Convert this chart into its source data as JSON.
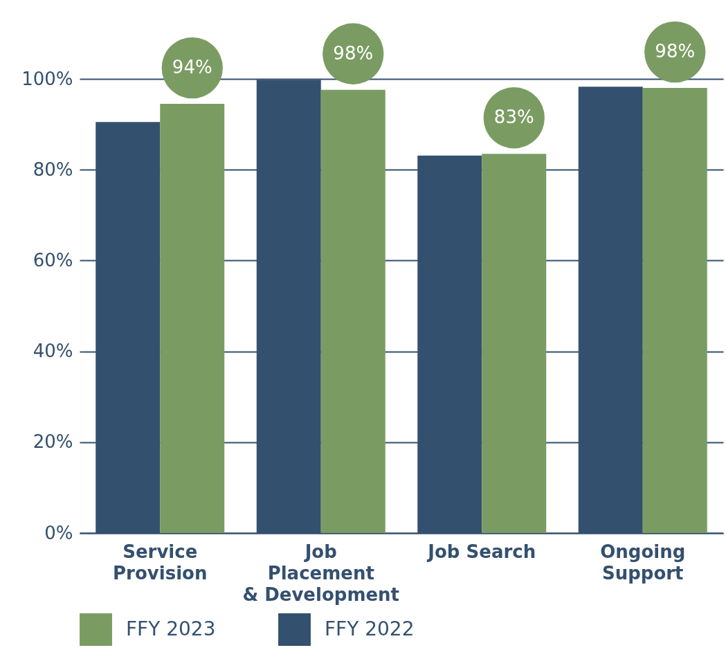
{
  "chart_data": {
    "type": "bar",
    "categories": [
      "Service Provision",
      "Job Placement & Development",
      "Job Search",
      "Ongoing Support"
    ],
    "series": [
      {
        "name": "FFY 2022",
        "color": "#34506f",
        "values": [
          90.5,
          99.8,
          83.1,
          98.3
        ]
      },
      {
        "name": "FFY 2023",
        "color": "#7a9c62",
        "values": [
          94.5,
          97.6,
          83.5,
          98
        ],
        "value_labels": [
          "94%",
          "98%",
          "83%",
          "98%"
        ]
      }
    ],
    "ylim": [
      0,
      100
    ],
    "yticks": [
      {
        "value": 0,
        "label": "0%"
      },
      {
        "value": 20,
        "label": "20%"
      },
      {
        "value": 40,
        "label": "40%"
      },
      {
        "value": 60,
        "label": "60%"
      },
      {
        "value": 80,
        "label": "80%"
      },
      {
        "value": 100,
        "label": "100%"
      }
    ],
    "grid": "y",
    "legend": "bottom"
  }
}
